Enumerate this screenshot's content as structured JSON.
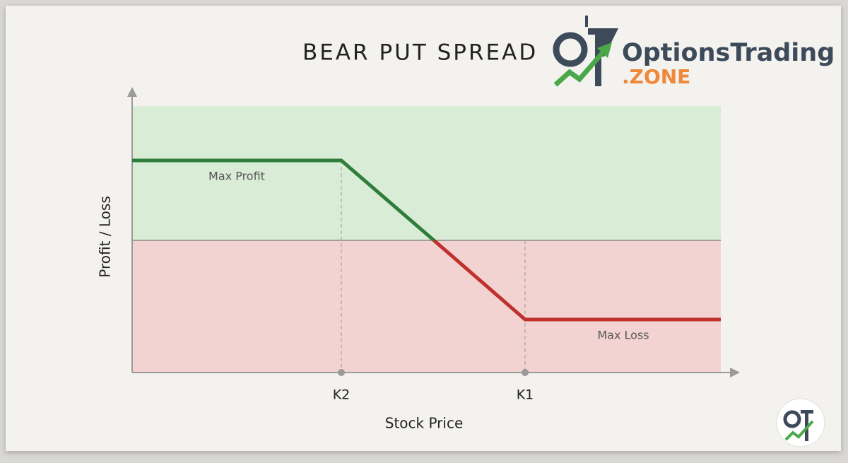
{
  "header": {
    "title": "BEAR PUT SPREAD",
    "brand": "OptionsTrading",
    "brand_suffix": ".ZONE"
  },
  "axes": {
    "y_label": "Profit / Loss",
    "x_label": "Stock Price"
  },
  "strikes": [
    "K2",
    "K1"
  ],
  "annotations": {
    "max_profit": "Max Profit",
    "max_loss": "Max Loss"
  }
}
